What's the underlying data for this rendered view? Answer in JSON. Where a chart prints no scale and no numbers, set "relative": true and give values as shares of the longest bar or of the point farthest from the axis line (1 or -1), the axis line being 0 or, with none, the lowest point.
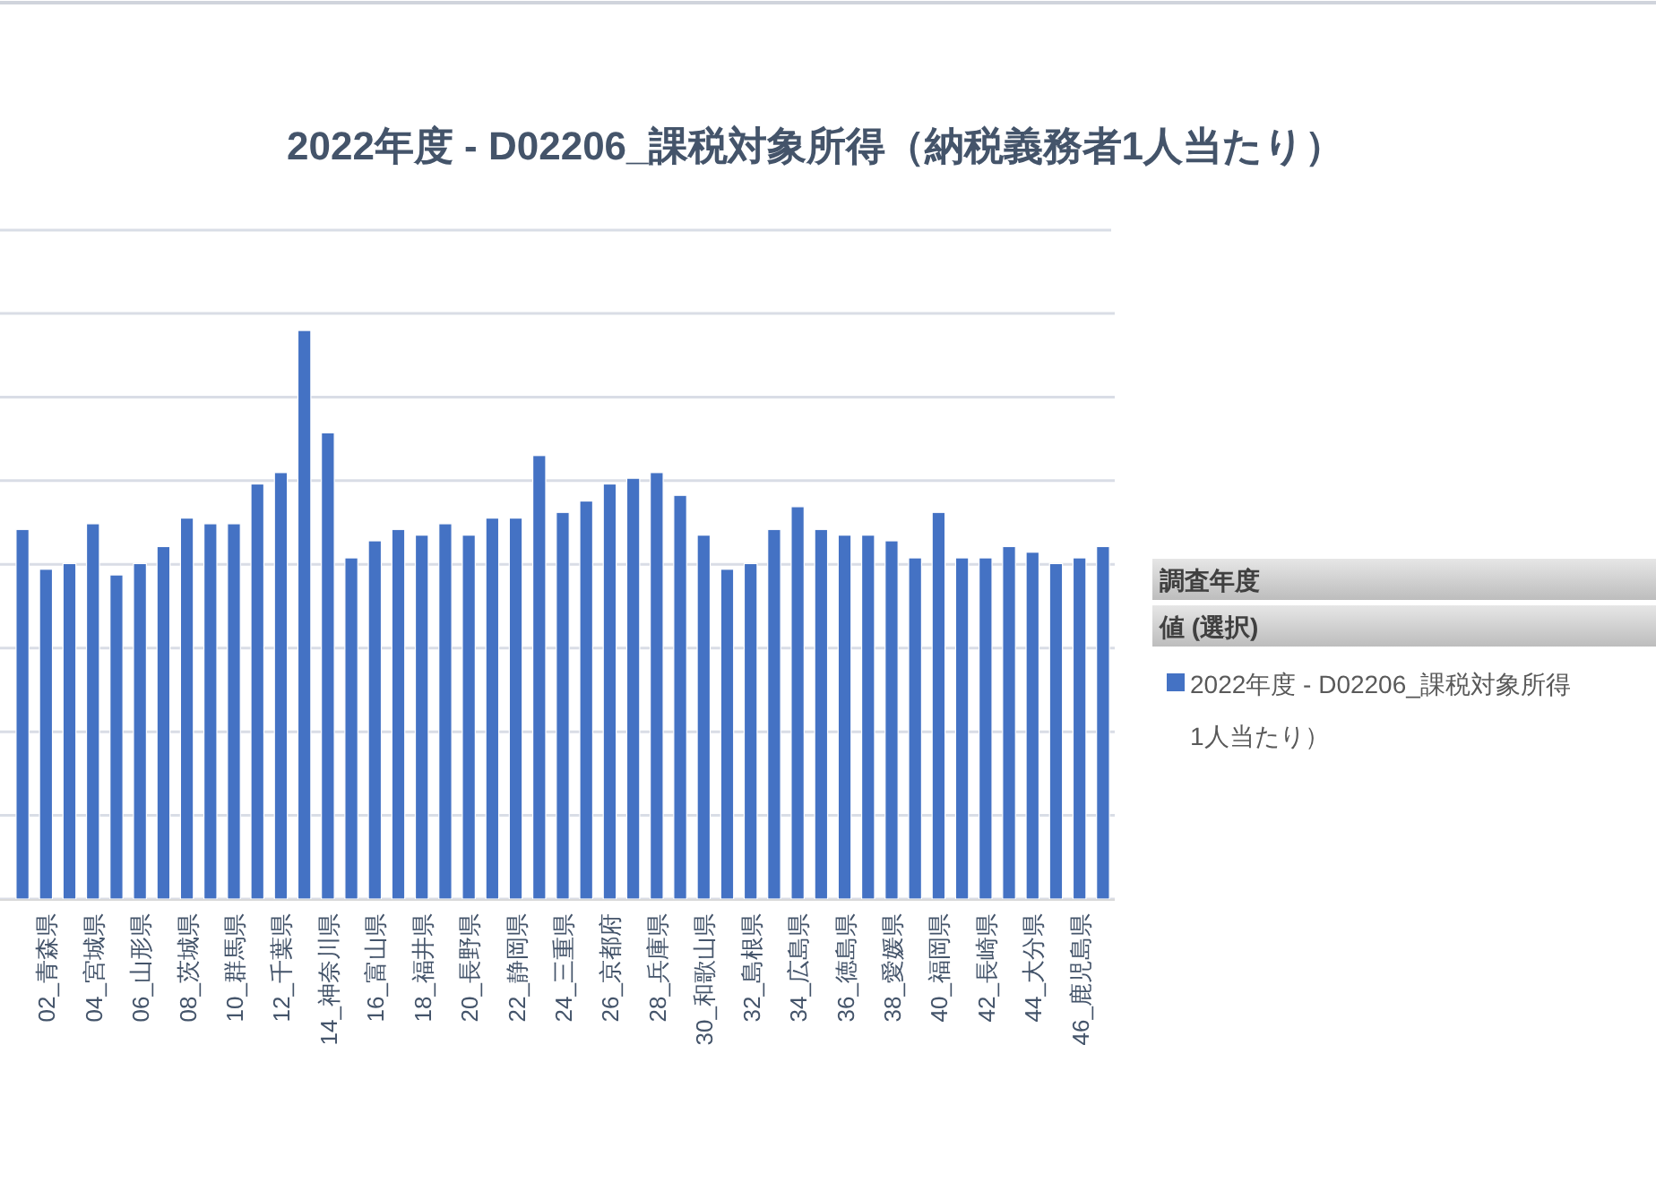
{
  "chart_data": {
    "type": "bar",
    "title": "2022年度 - D02206_課税対象所得（納税義務者1人当たり）",
    "relative": true,
    "grid": "y",
    "legend": "right",
    "categories": [
      null,
      "02_青森県",
      null,
      "04_宮城県",
      null,
      "06_山形県",
      null,
      "08_茨城県",
      null,
      "10_群馬県",
      null,
      "12_千葉県",
      null,
      "14_神奈川県",
      null,
      "16_富山県",
      null,
      "18_福井県",
      null,
      "20_長野県",
      null,
      "22_静岡県",
      null,
      "24_三重県",
      null,
      "26_京都府",
      null,
      "28_兵庫県",
      null,
      "30_和歌山県",
      null,
      "32_島根県",
      null,
      "34_広島県",
      null,
      "36_徳島県",
      null,
      "38_愛媛県",
      null,
      "40_福岡県",
      null,
      "42_長崎県",
      null,
      "44_大分県",
      null,
      "46_鹿児島県",
      null
    ],
    "series": [
      {
        "name": "2022年度 - D02206_課税対象所得\n1人当たり）",
        "color": "#4472c4",
        "values": [
          0.65,
          0.58,
          0.59,
          0.66,
          0.57,
          0.59,
          0.62,
          0.67,
          0.66,
          0.66,
          0.73,
          0.75,
          1,
          0.82,
          0.6,
          0.63,
          0.65,
          0.64,
          0.66,
          0.64,
          0.67,
          0.67,
          0.78,
          0.68,
          0.7,
          0.73,
          0.74,
          0.75,
          0.71,
          0.64,
          0.58,
          0.59,
          0.65,
          0.69,
          0.65,
          0.64,
          0.64,
          0.63,
          0.6,
          0.68,
          0.6,
          0.6,
          0.62,
          0.61,
          0.59,
          0.6,
          0.62
        ]
      }
    ],
    "annotations": [
      "調査年度",
      "値 (選択)"
    ]
  }
}
